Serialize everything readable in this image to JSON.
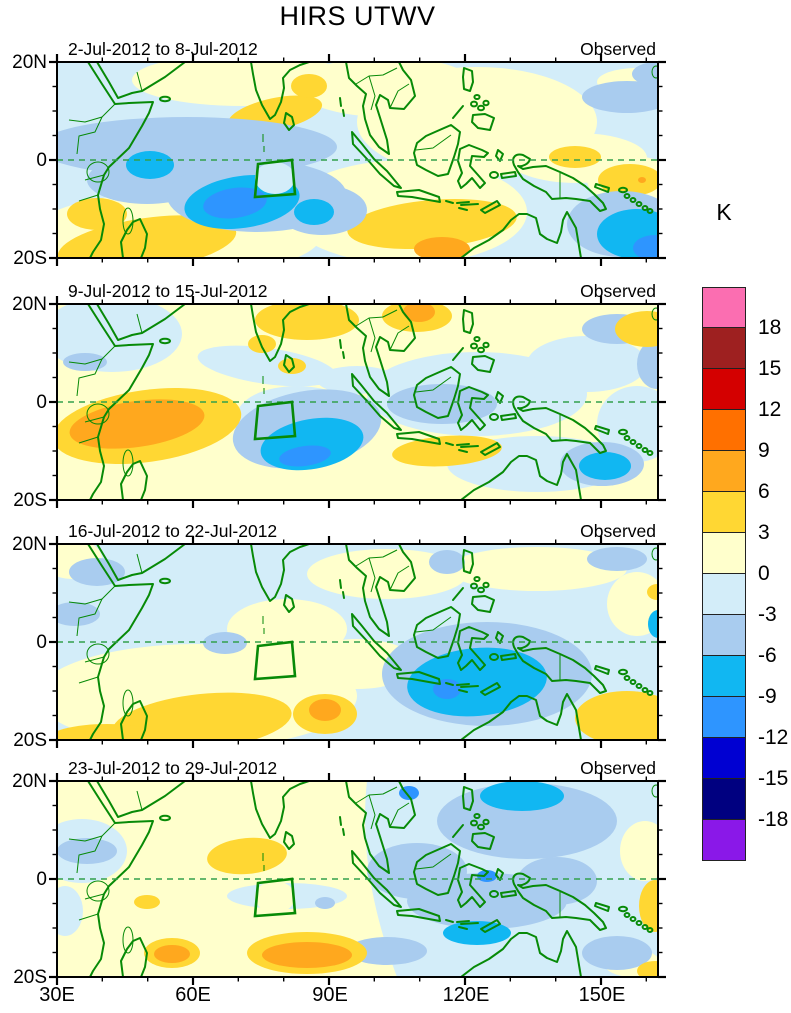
{
  "title": "HIRS UTWV",
  "colorbar": {
    "unit_label": "K",
    "tick_labels": [
      "18",
      "15",
      "12",
      "9",
      "6",
      "3",
      "0",
      "-3",
      "-6",
      "-9",
      "-12",
      "-15",
      "-18"
    ],
    "colors_top_to_bottom": [
      "#FB6EB1",
      "#9E2020",
      "#D40000",
      "#FF7000",
      "#FFA81E",
      "#FFD733",
      "#FFFFCC",
      "#D3EDF9",
      "#A9CCEF",
      "#11B7F2",
      "#2E95FF",
      "#0000D2",
      "#000080",
      "#8A18E8"
    ]
  },
  "axes": {
    "x_tick_labels": [
      "30E",
      "60E",
      "90E",
      "120E",
      "150E"
    ],
    "y_tick_labels": [
      "20N",
      "0",
      "20S"
    ]
  },
  "panels": [
    {
      "date_range": "2-Jul-2012 to 8-Jul-2012",
      "source_label": "Observed"
    },
    {
      "date_range": "9-Jul-2012 to 15-Jul-2012",
      "source_label": "Observed"
    },
    {
      "date_range": "16-Jul-2012 to 22-Jul-2012",
      "source_label": "Observed"
    },
    {
      "date_range": "23-Jul-2012 to 29-Jul-2012",
      "source_label": "Observed"
    }
  ],
  "chart_data": {
    "type": "heatmap",
    "subtype": "filled-contour anomaly maps, 4 stacked weekly panels",
    "title": "HIRS UTWV",
    "unit": "K",
    "contour_levels": [
      -18,
      -15,
      -12,
      -9,
      -6,
      -3,
      0,
      3,
      6,
      9,
      12,
      15,
      18
    ],
    "palette_low_to_high": [
      "#8A18E8",
      "#000080",
      "#0000D2",
      "#2E95FF",
      "#11B7F2",
      "#A9CCEF",
      "#D3EDF9",
      "#FFFFCC",
      "#FFD733",
      "#FFA81E",
      "#FF7000",
      "#D40000",
      "#9E2020",
      "#FB6EB1"
    ],
    "map_domain": {
      "longitude": "30E to ~163E",
      "latitude": "20S to 20N",
      "coastlines": "green",
      "equator": "green dashed line"
    },
    "x_ticks": [
      "30E",
      "60E",
      "90E",
      "120E",
      "150E"
    ],
    "y_ticks": [
      "20N",
      "0",
      "20S"
    ],
    "region_box": {
      "description": "green quadrilateral study box",
      "lon_range": "~74E-82E",
      "lat_range": "~0 to 8S"
    },
    "panels": [
      {
        "date_range": "2-Jul-2012 to 8-Jul-2012",
        "source": "Observed",
        "summary": "Dry anomalies -3 to -12 K across central equatorial Indian Ocean (core ~70-85E, 5-12S); moist 3-6 K over SW Indian Ocean / Madagascar, Bay of Bengal near India, and south of Indonesia with 6-9 K spot near 115E 18S; -6 to -12 K pool at far SE corner ~155-160E."
      },
      {
        "date_range": "9-Jul-2012 to 15-Jul-2012",
        "source": "Observed",
        "summary": "Strong moist anomaly 6-9 K over East Africa and western Indian Ocean (40-65E, 2-13S); dry pool -6 to -12 K southeast of study box (75-95E, 8-16S); 3-6 K north of India and near Vietnam (6-9 K spot); -6 to -9 K blob near Solomon Sea."
      },
      {
        "date_range": "16-Jul-2012 to 22-Jul-2012",
        "source": "Observed",
        "summary": "Weak anomalies over west; moist 3-6 K band SW Indian Ocean/Madagascar with 6-9 K spot near 85E 16S; broad dry region -6 to -9 K over Java/Banda Seas (105-125E, 2-14S); moist 3-6 K over Coral Sea SE corner."
      },
      {
        "date_range": "23-Jul-2012 to 29-Jul-2012",
        "source": "Observed",
        "summary": "Moist 3-9 K band across southern Indian Ocean (45-95E, 12-18S) and 3-6 K north of study box; widespread weak dry -3 to -9 K over Maritime Continent and west Pacific; -6 to -9 K east of Philippines and south of Timor; 3-6 K at far east edge."
      }
    ]
  }
}
